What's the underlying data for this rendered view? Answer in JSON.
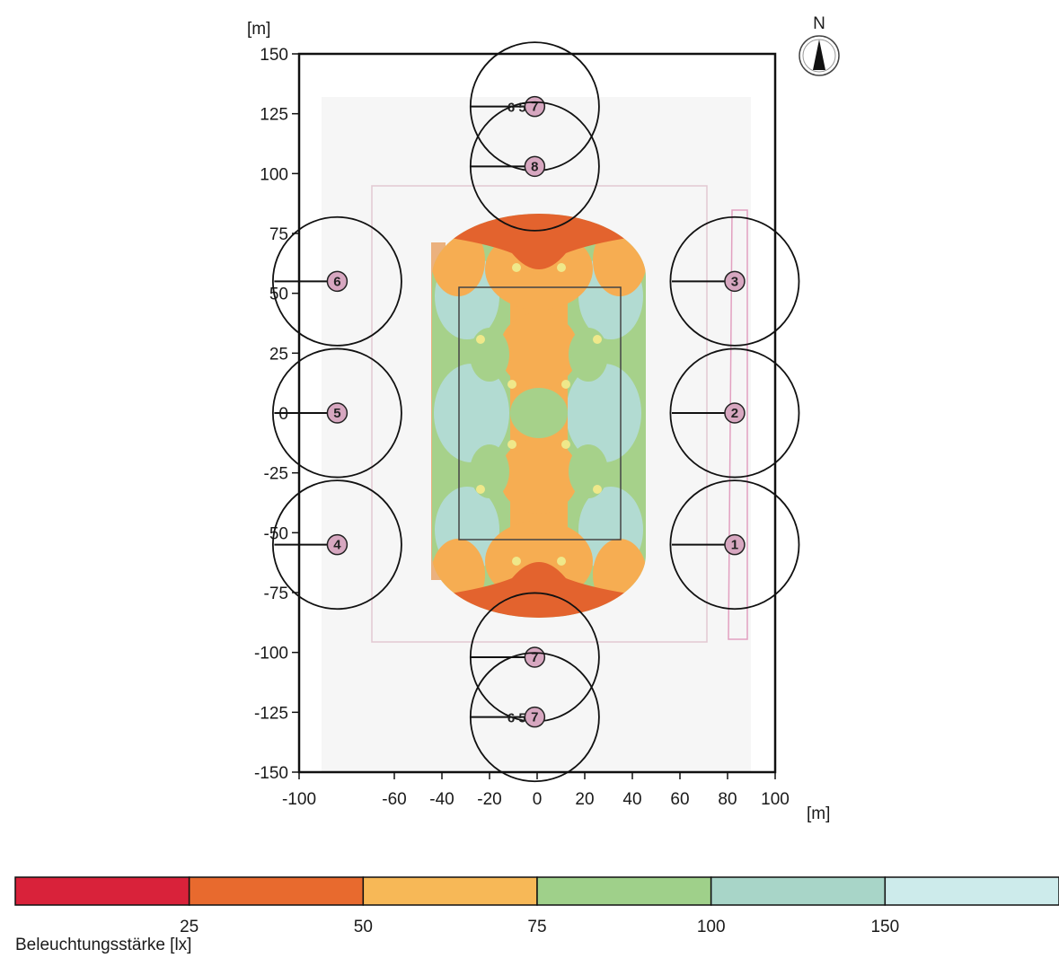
{
  "chart_data": {
    "type": "heatmap",
    "x_unit": "[m]",
    "y_unit": "[m]",
    "xlim": [
      -100,
      100
    ],
    "ylim": [
      -150,
      150
    ],
    "x_ticks": [
      "-100",
      "-60",
      "-40",
      "-20",
      "0",
      "20",
      "40",
      "60",
      "80",
      "100"
    ],
    "x_tick_values": [
      -100,
      -60,
      -40,
      -20,
      0,
      20,
      40,
      60,
      80,
      100
    ],
    "y_ticks": [
      "150",
      "125",
      "100",
      "75",
      "50",
      "25",
      "0",
      "-25",
      "-50",
      "-75",
      "-100",
      "-125",
      "-150"
    ],
    "y_tick_values": [
      150,
      125,
      100,
      75,
      50,
      25,
      0,
      -25,
      -50,
      -75,
      -100,
      -125,
      -150
    ],
    "north_label": "N",
    "luminaires": [
      {
        "id": "1",
        "label": "1",
        "x": 83,
        "y": -55,
        "radius": 27
      },
      {
        "id": "2",
        "label": "2",
        "x": 83,
        "y": 0,
        "radius": 27
      },
      {
        "id": "3",
        "label": "3",
        "x": 83,
        "y": 55,
        "radius": 27
      },
      {
        "id": "4",
        "label": "4",
        "x": -84,
        "y": -55,
        "radius": 27
      },
      {
        "id": "5",
        "label": "5",
        "x": -84,
        "y": 0,
        "radius": 27
      },
      {
        "id": "6",
        "label": "6",
        "x": -84,
        "y": 55,
        "radius": 27
      },
      {
        "id": "7-top",
        "label": "7",
        "x": -1,
        "y": 128,
        "radius": 27,
        "side_label": "6 5",
        "tail": "8"
      },
      {
        "id": "8",
        "label": "8",
        "x": -1,
        "y": 103,
        "radius": 27
      },
      {
        "id": "7-bottom",
        "label": "7",
        "x": -1,
        "y": -102,
        "radius": 27
      },
      {
        "id": "7-lower",
        "label": "7",
        "x": -1,
        "y": -127,
        "radius": 27,
        "side_label": "6 5",
        "tail": "7"
      }
    ],
    "legend": {
      "title": "Beleuchtungsstärke [lx]",
      "bins": [
        {
          "color": "#d9223a",
          "upper": "25"
        },
        {
          "color": "#e86a2e",
          "upper": "50"
        },
        {
          "color": "#f7b857",
          "upper": "75"
        },
        {
          "color": "#9fd08a",
          "upper": "100"
        },
        {
          "color": "#a8d5c8",
          "upper": "150"
        },
        {
          "color": "#cdebeb",
          "upper": ""
        }
      ]
    },
    "colors": {
      "band_red": "#d9223a",
      "band_darkorange": "#e3632e",
      "band_orange": "#f6ad52",
      "band_green": "#a6d18a",
      "band_teal": "#b2dbd2",
      "band_yellow": "#efe88a"
    }
  }
}
